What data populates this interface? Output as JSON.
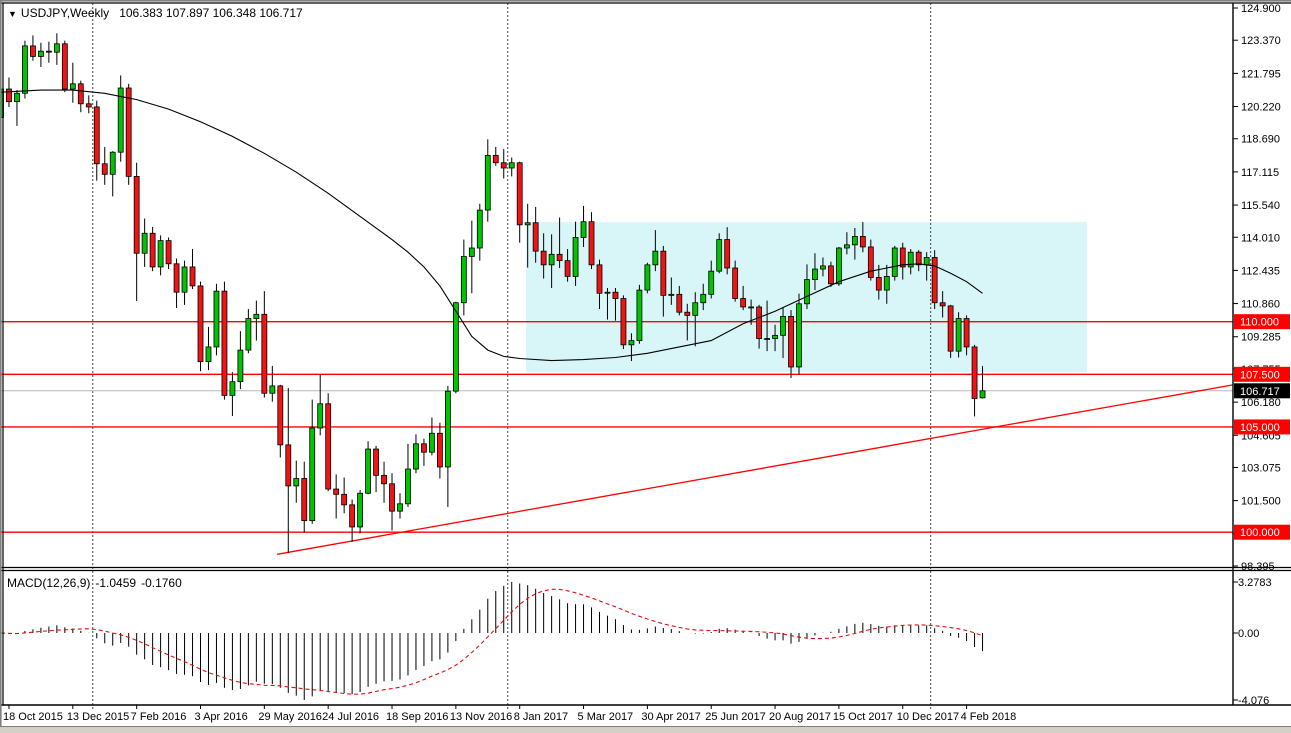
{
  "window": {
    "dropdown_icon": "▼",
    "symbol_period": "USDJPY,Weekly",
    "ohlc_readout": "106.383 107.897 106.348 106.717"
  },
  "macd_panel": {
    "label": "MACD(12,26,9)",
    "main_value": "-1.0459",
    "signal_value": "-0.1760",
    "scale_top": "3.2783",
    "scale_zero": "0.00",
    "scale_bottom": "-4.076"
  },
  "colors": {
    "bull": "#00C400",
    "bear": "#F01414",
    "candle_border": "#000000",
    "wick": "#000000",
    "ma_line": "#000000",
    "red_level": "#FF0000",
    "trendline": "#FF0000",
    "rectangle_fill": "#D8F6F8",
    "current_price_line": "#B8B8B8",
    "badge_red_bg": "#FF0000",
    "badge_black_bg": "#000000",
    "badge_text": "#FFFFFF",
    "separator": "#444444",
    "axis_text": "#000000",
    "macd_hist": "#000000",
    "macd_signal": "#E01010",
    "frame": "#000000",
    "window_edge": "#808080",
    "bottom_strip": "#D4D0C8"
  },
  "price_axis": {
    "labels": [
      {
        "text": "124.900",
        "price": 124.9
      },
      {
        "text": "123.370",
        "price": 123.37
      },
      {
        "text": "121.795",
        "price": 121.795
      },
      {
        "text": "120.220",
        "price": 120.22
      },
      {
        "text": "118.690",
        "price": 118.69
      },
      {
        "text": "117.115",
        "price": 117.115
      },
      {
        "text": "115.540",
        "price": 115.54
      },
      {
        "text": "114.010",
        "price": 114.01
      },
      {
        "text": "112.435",
        "price": 112.435
      },
      {
        "text": "110.860",
        "price": 110.86
      },
      {
        "text": "109.285",
        "price": 109.285
      },
      {
        "text": "107.755",
        "price": 107.755
      },
      {
        "text": "106.180",
        "price": 106.18
      },
      {
        "text": "104.605",
        "price": 104.605
      },
      {
        "text": "103.075",
        "price": 103.075
      },
      {
        "text": "101.500",
        "price": 101.5
      },
      {
        "text": "99.925",
        "price": 99.925
      },
      {
        "text": "98.395",
        "price": 98.395
      }
    ],
    "level_badges": [
      {
        "text": "110.000",
        "price": 110.0
      },
      {
        "text": "107.500",
        "price": 107.5
      },
      {
        "text": "105.000",
        "price": 105.0
      },
      {
        "text": "100.000",
        "price": 100.0
      }
    ],
    "current_badge": {
      "text": "106.717",
      "price": 106.717
    }
  },
  "time_axis": {
    "labels": [
      {
        "index": 1,
        "text": "18 Oct 2015"
      },
      {
        "index": 9,
        "text": "13 Dec 2015"
      },
      {
        "index": 17,
        "text": "7 Feb 2016"
      },
      {
        "index": 25,
        "text": "3 Apr 2016"
      },
      {
        "index": 33,
        "text": "29 May 2016"
      },
      {
        "index": 41,
        "text": "24 Jul 2016"
      },
      {
        "index": 49,
        "text": "18 Sep 2016"
      },
      {
        "index": 57,
        "text": "13 Nov 2016"
      },
      {
        "index": 65,
        "text": "8 Jan 2017"
      },
      {
        "index": 73,
        "text": "5 Mar 2017"
      },
      {
        "index": 81,
        "text": "30 Apr 2017"
      },
      {
        "index": 89,
        "text": "25 Jun 2017"
      },
      {
        "index": 97,
        "text": "20 Aug 2017"
      },
      {
        "index": 105,
        "text": "15 Oct 2017"
      },
      {
        "index": 113,
        "text": "10 Dec 2017"
      },
      {
        "index": 121,
        "text": "4 Feb 2018"
      }
    ]
  },
  "chart_data": {
    "type": "candlestick",
    "symbol": "USDJPY",
    "timeframe": "Weekly",
    "title": "USDJPY,Weekly",
    "ylim": [
      98.35,
      125.14
    ],
    "grid": false,
    "legend": "none",
    "current_price": 106.717,
    "horizontal_levels": [
      110.0,
      107.5,
      105.0,
      100.0
    ],
    "year_separators_index": [
      11.5,
      63.5,
      116.5
    ],
    "candles": [
      [
        119.7,
        121.2,
        119.3,
        121.05
      ],
      [
        121.05,
        121.6,
        120.2,
        120.45
      ],
      [
        120.45,
        121.0,
        119.3,
        120.85
      ],
      [
        120.85,
        123.35,
        120.6,
        123.1
      ],
      [
        123.1,
        123.6,
        122.4,
        122.6
      ],
      [
        122.6,
        123.25,
        122.1,
        122.85
      ],
      [
        122.85,
        123.3,
        122.3,
        122.8
      ],
      [
        122.8,
        123.7,
        122.2,
        123.2
      ],
      [
        123.2,
        123.35,
        120.9,
        121.05
      ],
      [
        121.05,
        122.3,
        120.4,
        121.3
      ],
      [
        121.3,
        121.45,
        119.95,
        120.35
      ],
      [
        120.35,
        120.75,
        119.9,
        120.2
      ],
      [
        120.2,
        120.5,
        116.7,
        117.5
      ],
      [
        117.5,
        118.3,
        116.5,
        117.0
      ],
      [
        117.0,
        118.1,
        115.95,
        118.05
      ],
      [
        118.05,
        121.7,
        117.6,
        121.1
      ],
      [
        121.1,
        121.3,
        116.5,
        116.9
      ],
      [
        116.9,
        117.55,
        110.98,
        113.25
      ],
      [
        113.25,
        114.9,
        112.6,
        114.2
      ],
      [
        114.2,
        114.5,
        112.4,
        112.6
      ],
      [
        112.6,
        114.1,
        112.2,
        113.85
      ],
      [
        113.85,
        114.0,
        112.5,
        112.75
      ],
      [
        112.75,
        113.0,
        110.65,
        111.4
      ],
      [
        111.4,
        112.9,
        110.8,
        112.6
      ],
      [
        112.6,
        113.45,
        111.55,
        111.7
      ],
      [
        111.7,
        111.9,
        107.65,
        108.1
      ],
      [
        108.1,
        109.75,
        107.7,
        108.8
      ],
      [
        108.8,
        111.8,
        108.4,
        111.45
      ],
      [
        111.45,
        111.9,
        106.3,
        106.5
      ],
      [
        106.5,
        107.6,
        105.52,
        107.15
      ],
      [
        107.15,
        109.55,
        106.8,
        108.65
      ],
      [
        108.65,
        110.6,
        108.5,
        110.15
      ],
      [
        110.15,
        111.0,
        109.1,
        110.35
      ],
      [
        110.35,
        111.45,
        106.4,
        106.6
      ],
      [
        106.6,
        107.9,
        106.2,
        106.95
      ],
      [
        106.95,
        107.0,
        103.55,
        104.15
      ],
      [
        104.15,
        106.85,
        99.02,
        102.2
      ],
      [
        102.2,
        103.4,
        101.4,
        102.55
      ],
      [
        102.55,
        103.35,
        99.99,
        100.55
      ],
      [
        100.55,
        106.3,
        100.4,
        104.95
      ],
      [
        104.95,
        107.49,
        104.6,
        106.1
      ],
      [
        106.1,
        106.6,
        101.95,
        102.05
      ],
      [
        102.05,
        102.75,
        100.65,
        101.8
      ],
      [
        101.8,
        102.6,
        100.9,
        101.3
      ],
      [
        101.3,
        101.55,
        99.54,
        100.25
      ],
      [
        100.25,
        102.0,
        99.95,
        101.85
      ],
      [
        101.85,
        104.32,
        101.8,
        103.95
      ],
      [
        103.95,
        104.1,
        101.9,
        102.7
      ],
      [
        102.7,
        103.35,
        101.4,
        102.3
      ],
      [
        102.3,
        102.8,
        100.08,
        101.0
      ],
      [
        101.0,
        101.85,
        100.65,
        101.35
      ],
      [
        101.35,
        104.2,
        101.2,
        103.0
      ],
      [
        103.0,
        104.65,
        102.8,
        104.2
      ],
      [
        104.2,
        104.45,
        103.15,
        103.8
      ],
      [
        103.8,
        105.45,
        103.65,
        104.7
      ],
      [
        104.7,
        105.2,
        102.55,
        103.1
      ],
      [
        103.1,
        106.95,
        101.2,
        106.7
      ],
      [
        106.7,
        110.95,
        106.6,
        110.9
      ],
      [
        110.9,
        113.9,
        110.3,
        113.1
      ],
      [
        113.1,
        114.8,
        111.35,
        113.5
      ],
      [
        113.5,
        115.6,
        112.9,
        115.3
      ],
      [
        115.3,
        118.66,
        114.75,
        117.9
      ],
      [
        117.9,
        118.3,
        117.4,
        117.55
      ],
      [
        117.55,
        118.2,
        116.8,
        117.3
      ],
      [
        117.3,
        117.8,
        116.9,
        117.55
      ],
      [
        117.55,
        117.6,
        113.75,
        114.6
      ],
      [
        114.6,
        115.6,
        112.57,
        114.7
      ],
      [
        114.7,
        115.45,
        112.8,
        113.35
      ],
      [
        113.35,
        114.2,
        112.05,
        112.7
      ],
      [
        112.7,
        114.15,
        111.6,
        113.2
      ],
      [
        113.2,
        114.95,
        112.55,
        112.9
      ],
      [
        112.9,
        113.45,
        111.9,
        112.15
      ],
      [
        112.15,
        114.75,
        111.7,
        114.0
      ],
      [
        114.0,
        115.5,
        113.55,
        114.75
      ],
      [
        114.75,
        115.2,
        112.5,
        112.7
      ],
      [
        112.7,
        112.95,
        110.6,
        111.35
      ],
      [
        111.35,
        111.6,
        110.1,
        111.4
      ],
      [
        111.4,
        111.6,
        110.05,
        111.1
      ],
      [
        111.1,
        111.25,
        108.7,
        108.9
      ],
      [
        108.9,
        109.45,
        108.13,
        109.1
      ],
      [
        109.1,
        111.75,
        108.95,
        111.5
      ],
      [
        111.5,
        112.8,
        111.35,
        112.7
      ],
      [
        112.7,
        114.35,
        112.4,
        113.35
      ],
      [
        113.35,
        113.6,
        110.24,
        111.25
      ],
      [
        111.25,
        112.1,
        110.8,
        111.3
      ],
      [
        111.3,
        111.7,
        110.3,
        110.45
      ],
      [
        110.45,
        110.85,
        109.11,
        110.3
      ],
      [
        110.3,
        111.4,
        108.83,
        110.9
      ],
      [
        110.9,
        111.8,
        110.55,
        111.3
      ],
      [
        111.3,
        112.9,
        111.1,
        112.4
      ],
      [
        112.4,
        114.2,
        112.3,
        113.9
      ],
      [
        113.9,
        114.49,
        112.25,
        112.55
      ],
      [
        112.55,
        112.9,
        110.95,
        111.1
      ],
      [
        111.1,
        111.7,
        110.55,
        110.7
      ],
      [
        110.7,
        111.05,
        109.85,
        110.7
      ],
      [
        110.7,
        110.8,
        108.72,
        109.2
      ],
      [
        109.2,
        111.0,
        108.6,
        109.2
      ],
      [
        109.2,
        109.85,
        108.6,
        109.35
      ],
      [
        109.35,
        110.7,
        108.27,
        110.25
      ],
      [
        110.25,
        110.55,
        107.32,
        107.85
      ],
      [
        107.85,
        111.33,
        107.5,
        110.85
      ],
      [
        110.85,
        112.72,
        110.6,
        112.0
      ],
      [
        112.0,
        113.25,
        111.5,
        112.5
      ],
      [
        112.5,
        113.05,
        112.15,
        112.65
      ],
      [
        112.65,
        112.85,
        111.65,
        111.8
      ],
      [
        111.8,
        113.55,
        111.7,
        113.5
      ],
      [
        113.5,
        114.25,
        113.2,
        113.65
      ],
      [
        113.65,
        114.45,
        112.95,
        114.05
      ],
      [
        114.05,
        114.73,
        113.3,
        113.55
      ],
      [
        113.55,
        113.9,
        111.95,
        112.1
      ],
      [
        112.1,
        112.7,
        111.05,
        111.5
      ],
      [
        111.5,
        112.7,
        110.85,
        112.15
      ],
      [
        112.15,
        113.6,
        111.95,
        113.5
      ],
      [
        113.5,
        113.75,
        112.0,
        112.6
      ],
      [
        112.6,
        113.45,
        112.25,
        113.3
      ],
      [
        113.3,
        113.4,
        112.4,
        112.7
      ],
      [
        112.7,
        113.3,
        111.95,
        113.05
      ],
      [
        113.05,
        113.4,
        110.6,
        110.9
      ],
      [
        110.9,
        111.45,
        110.2,
        110.75
      ],
      [
        110.75,
        110.8,
        108.28,
        108.6
      ],
      [
        108.6,
        110.45,
        108.3,
        110.15
      ],
      [
        110.15,
        110.3,
        108.4,
        108.8
      ],
      [
        108.8,
        108.9,
        105.5,
        106.35
      ],
      [
        106.383,
        107.897,
        106.348,
        106.717
      ]
    ],
    "ma_line_anchors": [
      [
        0,
        120.9
      ],
      [
        5,
        121.0
      ],
      [
        9,
        121.0
      ],
      [
        13,
        120.85
      ],
      [
        17,
        120.55
      ],
      [
        21,
        120.1
      ],
      [
        25,
        119.5
      ],
      [
        29,
        118.8
      ],
      [
        33,
        118.0
      ],
      [
        37,
        117.1
      ],
      [
        41,
        116.1
      ],
      [
        45,
        115.0
      ],
      [
        49,
        113.9
      ],
      [
        51,
        113.3
      ],
      [
        53,
        112.6
      ],
      [
        55,
        111.7
      ],
      [
        57,
        110.5
      ],
      [
        59,
        109.3
      ],
      [
        61,
        108.65
      ],
      [
        63,
        108.35
      ],
      [
        65,
        108.25
      ],
      [
        69,
        108.15
      ],
      [
        73,
        108.2
      ],
      [
        77,
        108.3
      ],
      [
        81,
        108.5
      ],
      [
        85,
        108.8
      ],
      [
        89,
        109.1
      ],
      [
        93,
        109.9
      ],
      [
        97,
        110.5
      ],
      [
        101,
        111.2
      ],
      [
        105,
        111.9
      ],
      [
        109,
        112.4
      ],
      [
        111,
        112.55
      ],
      [
        113,
        112.7
      ],
      [
        115,
        112.75
      ],
      [
        117,
        112.65
      ],
      [
        119,
        112.3
      ],
      [
        121,
        111.9
      ],
      [
        123,
        111.35
      ]
    ],
    "trendline": {
      "i1": 34.6,
      "p1": 98.95,
      "i2": 154.4,
      "p2": 107.0
    },
    "rectangle_zone": {
      "i1": 65.8,
      "p1": 114.73,
      "i2": 136.1,
      "p2": 107.61
    },
    "macd": {
      "fast": 12,
      "slow": 26,
      "signal": 9
    }
  }
}
